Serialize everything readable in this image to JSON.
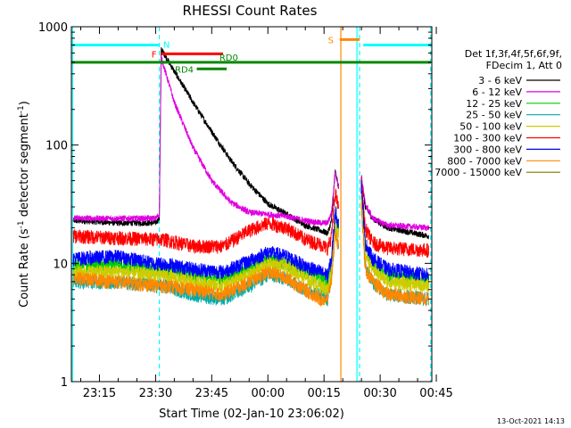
{
  "chart_data": {
    "type": "line",
    "title": "RHESSI Count Rates",
    "xlabel": "Start Time (02-Jan-10 23:06:02)",
    "ylabel": "Count Rate (s⁻¹ detector segment⁻¹)",
    "ylabel_parts": {
      "base": "Count Rate (s",
      "sup1": "-1",
      "mid": " detector segment",
      "sup2": "-1",
      "end": ")"
    },
    "y_scale": "log",
    "ylim": [
      1,
      1000
    ],
    "xlim_minutes": [
      -52.5,
      43.8
    ],
    "x_ticks": [
      {
        "m": -45,
        "label": "23:15"
      },
      {
        "m": -30,
        "label": "23:30"
      },
      {
        "m": -15,
        "label": "23:45"
      },
      {
        "m": 0,
        "label": "00:00"
      },
      {
        "m": 15,
        "label": "00:15"
      },
      {
        "m": 30,
        "label": "00:30"
      },
      {
        "m": 45,
        "label": "00:45"
      }
    ],
    "y_ticks": [
      {
        "v": 1,
        "label": "1"
      },
      {
        "v": 10,
        "label": "10"
      },
      {
        "v": 100,
        "label": "100"
      },
      {
        "v": 1000,
        "label": "1000"
      }
    ],
    "grid": false,
    "legend_position": "right",
    "legend_header": [
      "Det 1f,3f,4f,5f,6f,9f,",
      "FDecim 1, Att 0"
    ],
    "gaps": [
      {
        "from": 19.5,
        "to": 24.5
      }
    ],
    "series": [
      {
        "name": "3 - 6 keV",
        "color": "#000000",
        "points": [
          [
            -52,
            23
          ],
          [
            -40,
            22
          ],
          [
            -30,
            22
          ],
          [
            -29,
            24
          ],
          [
            -28.5,
            650
          ],
          [
            -25,
            420
          ],
          [
            -20,
            230
          ],
          [
            -15,
            130
          ],
          [
            -10,
            75
          ],
          [
            -5,
            47
          ],
          [
            0,
            32
          ],
          [
            5,
            26
          ],
          [
            10,
            21
          ],
          [
            14,
            19
          ],
          [
            16,
            18
          ],
          [
            17,
            23
          ],
          [
            18,
            60
          ],
          [
            18.8,
            45
          ],
          [
            25,
            50
          ],
          [
            26,
            30
          ],
          [
            28,
            24
          ],
          [
            32,
            20
          ],
          [
            43,
            17
          ]
        ]
      },
      {
        "name": "6 - 12 keV",
        "color": "#e000e0",
        "points": [
          [
            -52,
            24
          ],
          [
            -40,
            24
          ],
          [
            -30,
            24
          ],
          [
            -29,
            26
          ],
          [
            -28.5,
            550
          ],
          [
            -25,
            230
          ],
          [
            -20,
            95
          ],
          [
            -15,
            50
          ],
          [
            -10,
            33
          ],
          [
            -5,
            27
          ],
          [
            0,
            26
          ],
          [
            5,
            25
          ],
          [
            10,
            23
          ],
          [
            14,
            22
          ],
          [
            16,
            22
          ],
          [
            17,
            27
          ],
          [
            18,
            60
          ],
          [
            18.8,
            45
          ],
          [
            25,
            55
          ],
          [
            26,
            32
          ],
          [
            28,
            24
          ],
          [
            32,
            21
          ],
          [
            43,
            20
          ]
        ]
      },
      {
        "name": "12 - 25 keV",
        "color": "#00cc00",
        "points": [
          [
            -52,
            9.5
          ],
          [
            -40,
            10
          ],
          [
            -30,
            9
          ],
          [
            -28,
            9
          ],
          [
            -20,
            8
          ],
          [
            -12,
            7.5
          ],
          [
            -5,
            9
          ],
          [
            0,
            11
          ],
          [
            5,
            10
          ],
          [
            10,
            8.5
          ],
          [
            14,
            7.5
          ],
          [
            16,
            7
          ],
          [
            17,
            10
          ],
          [
            18,
            25
          ],
          [
            18.8,
            20
          ],
          [
            25,
            45
          ],
          [
            26,
            14
          ],
          [
            28,
            10
          ],
          [
            32,
            8
          ],
          [
            43,
            7.5
          ]
        ]
      },
      {
        "name": "25 - 50 keV",
        "color": "#00aaaa",
        "points": [
          [
            -52,
            7
          ],
          [
            -40,
            7
          ],
          [
            -30,
            6.5
          ],
          [
            -28,
            6.5
          ],
          [
            -20,
            5.5
          ],
          [
            -12,
            5
          ],
          [
            -5,
            6.5
          ],
          [
            0,
            8
          ],
          [
            5,
            7.5
          ],
          [
            10,
            6
          ],
          [
            14,
            5.5
          ],
          [
            16,
            5
          ],
          [
            17,
            8
          ],
          [
            18,
            20
          ],
          [
            18.8,
            15
          ],
          [
            25,
            35
          ],
          [
            26,
            10
          ],
          [
            28,
            7
          ],
          [
            32,
            5.5
          ],
          [
            43,
            5
          ]
        ]
      },
      {
        "name": "50 - 100 keV",
        "color": "#cccc00",
        "points": [
          [
            -52,
            8.5
          ],
          [
            -40,
            8.5
          ],
          [
            -30,
            8
          ],
          [
            -28,
            8
          ],
          [
            -20,
            7
          ],
          [
            -12,
            6.5
          ],
          [
            -5,
            8
          ],
          [
            0,
            10
          ],
          [
            5,
            9.5
          ],
          [
            10,
            7.5
          ],
          [
            14,
            6.5
          ],
          [
            16,
            6
          ],
          [
            17,
            9
          ],
          [
            18,
            22
          ],
          [
            18.8,
            18
          ],
          [
            25,
            40
          ],
          [
            26,
            12
          ],
          [
            28,
            9
          ],
          [
            32,
            7
          ],
          [
            43,
            6.5
          ]
        ]
      },
      {
        "name": "100 - 300 keV",
        "color": "#ff0000",
        "points": [
          [
            -52,
            17
          ],
          [
            -40,
            16.5
          ],
          [
            -30,
            16
          ],
          [
            -28,
            16
          ],
          [
            -20,
            14
          ],
          [
            -12,
            14
          ],
          [
            -5,
            19
          ],
          [
            0,
            22
          ],
          [
            5,
            20
          ],
          [
            10,
            16
          ],
          [
            14,
            14.5
          ],
          [
            16,
            13.5
          ],
          [
            17,
            17
          ],
          [
            18,
            40
          ],
          [
            18.8,
            30
          ],
          [
            25,
            48
          ],
          [
            26,
            20
          ],
          [
            28,
            15
          ],
          [
            32,
            13.5
          ],
          [
            43,
            13
          ]
        ]
      },
      {
        "name": "300 - 800 keV",
        "color": "#0000ff",
        "points": [
          [
            -52,
            11
          ],
          [
            -40,
            11.5
          ],
          [
            -30,
            10
          ],
          [
            -28,
            10
          ],
          [
            -20,
            9
          ],
          [
            -12,
            8.5
          ],
          [
            -5,
            10.5
          ],
          [
            0,
            12.5
          ],
          [
            5,
            11.5
          ],
          [
            10,
            9.5
          ],
          [
            14,
            8.5
          ],
          [
            16,
            8
          ],
          [
            17,
            11
          ],
          [
            18,
            28
          ],
          [
            18.8,
            22
          ],
          [
            25,
            45
          ],
          [
            26,
            15
          ],
          [
            28,
            11
          ],
          [
            32,
            9
          ],
          [
            43,
            8
          ]
        ]
      },
      {
        "name": "800 - 7000 keV",
        "color": "#ff8800",
        "points": [
          [
            -52,
            7.5
          ],
          [
            -40,
            7
          ],
          [
            -30,
            6.5
          ],
          [
            -28,
            6.5
          ],
          [
            -20,
            6
          ],
          [
            -12,
            5.5
          ],
          [
            -5,
            7
          ],
          [
            0,
            8.5
          ],
          [
            5,
            7.5
          ],
          [
            10,
            6
          ],
          [
            14,
            5
          ],
          [
            16,
            5
          ],
          [
            17,
            7.5
          ],
          [
            18,
            18
          ],
          [
            18.8,
            14
          ],
          [
            25,
            30
          ],
          [
            26,
            9
          ],
          [
            28,
            7
          ],
          [
            32,
            5.5
          ],
          [
            43,
            5
          ]
        ]
      },
      {
        "name": "7000 - 15000 keV",
        "color": "#777700",
        "points": []
      }
    ],
    "annotations": [
      {
        "label": "N",
        "color": "#00ffff",
        "kind": "bar",
        "from": -52.5,
        "to": -29,
        "y": 700
      },
      {
        "label": "",
        "color": "#00ffff",
        "kind": "bar",
        "from": 25.5,
        "to": 43.5,
        "y": 700
      },
      {
        "label": "F",
        "color": "#ff0000",
        "kind": "bar",
        "from": -28.5,
        "to": -12,
        "y": 590
      },
      {
        "label": "RD0",
        "color": "#008800",
        "kind": "bar",
        "from": -52.5,
        "to": 43.5,
        "y": 500
      },
      {
        "label": "RD4",
        "color": "#008800",
        "kind": "bar",
        "from": -19,
        "to": -11,
        "y": 440
      },
      {
        "label": "S",
        "color": "#ff8800",
        "kind": "bar",
        "from": 19.2,
        "to": 24.5,
        "y": 780
      }
    ],
    "vertical_markers": [
      {
        "m": -52.2,
        "color": "#00ffff",
        "style": "solid"
      },
      {
        "m": -29,
        "color": "#00ffff",
        "style": "dashed"
      },
      {
        "m": 19.5,
        "color": "#ff8800",
        "style": "solid"
      },
      {
        "m": 23.8,
        "color": "#00ffff",
        "style": "solid"
      },
      {
        "m": 24.5,
        "color": "#00ffff",
        "style": "dashed"
      },
      {
        "m": 43.5,
        "color": "#00ffff",
        "style": "dashed"
      }
    ]
  },
  "footer_timestamp": "13-Oct-2021 14:13"
}
